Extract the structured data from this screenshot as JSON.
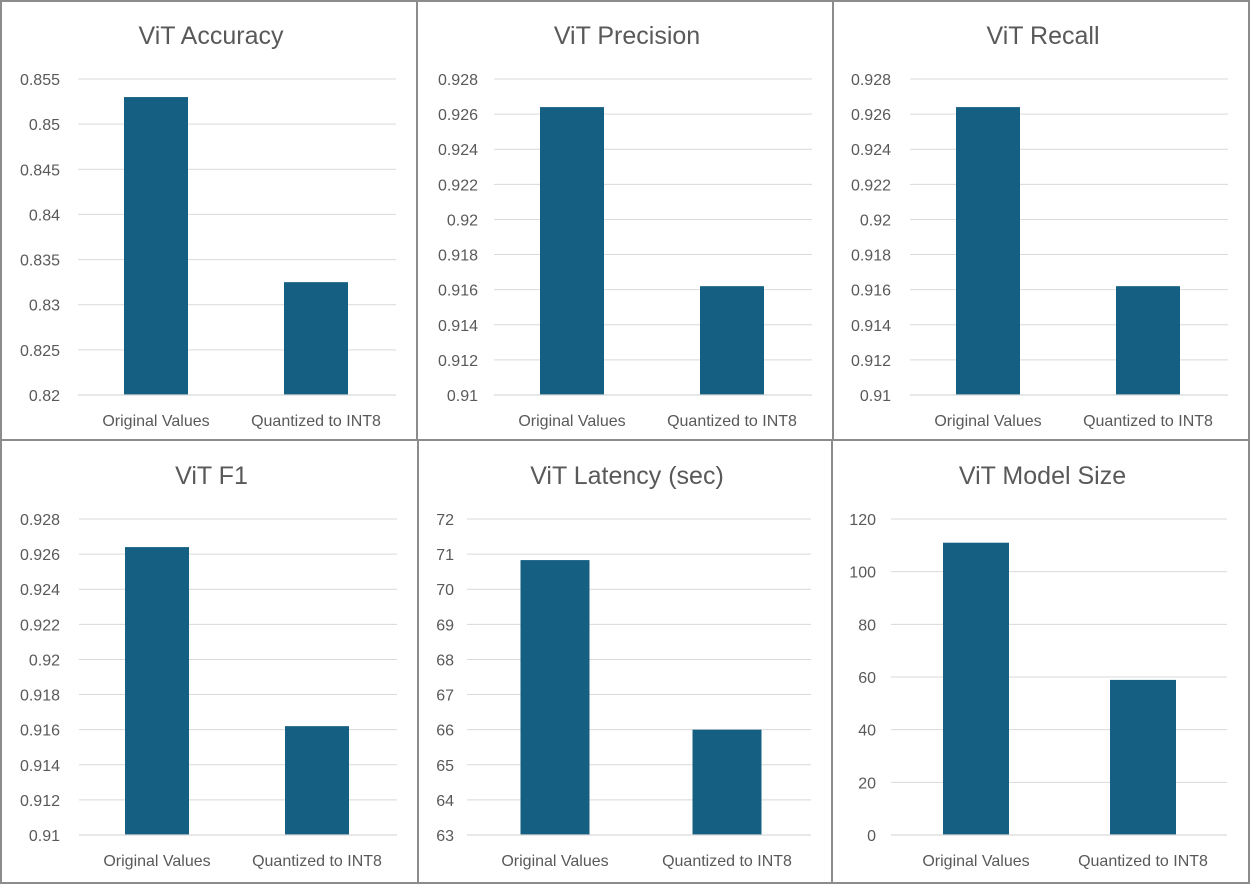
{
  "colors": {
    "bar": "#156082",
    "grid": "#d9d9d9",
    "text": "#595959",
    "border": "#8c8c8c"
  },
  "chart_data": [
    {
      "type": "bar",
      "title": "ViT Accuracy",
      "categories": [
        "Original Values",
        "Quantized to INT8"
      ],
      "values": [
        0.853,
        0.8325
      ],
      "ylim": [
        0.82,
        0.855
      ],
      "yticks": [
        "0.82",
        "0.825",
        "0.83",
        "0.835",
        "0.84",
        "0.845",
        "0.85",
        "0.855"
      ],
      "grid": true
    },
    {
      "type": "bar",
      "title": "ViT Precision",
      "categories": [
        "Original Values",
        "Quantized to INT8"
      ],
      "values": [
        0.9264,
        0.9162
      ],
      "ylim": [
        0.91,
        0.928
      ],
      "yticks": [
        "0.91",
        "0.912",
        "0.914",
        "0.916",
        "0.918",
        "0.92",
        "0.922",
        "0.924",
        "0.926",
        "0.928"
      ],
      "grid": true
    },
    {
      "type": "bar",
      "title": "ViT Recall",
      "categories": [
        "Original Values",
        "Quantized to INT8"
      ],
      "values": [
        0.9264,
        0.9162
      ],
      "ylim": [
        0.91,
        0.928
      ],
      "yticks": [
        "0.91",
        "0.912",
        "0.914",
        "0.916",
        "0.918",
        "0.92",
        "0.922",
        "0.924",
        "0.926",
        "0.928"
      ],
      "grid": true
    },
    {
      "type": "bar",
      "title": "ViT F1",
      "categories": [
        "Original Values",
        "Quantized to INT8"
      ],
      "values": [
        0.9264,
        0.9162
      ],
      "ylim": [
        0.91,
        0.928
      ],
      "yticks": [
        "0.91",
        "0.912",
        "0.914",
        "0.916",
        "0.918",
        "0.92",
        "0.922",
        "0.924",
        "0.926",
        "0.928"
      ],
      "grid": true
    },
    {
      "type": "bar",
      "title": "ViT Latency (sec)",
      "categories": [
        "Original Values",
        "Quantized to INT8"
      ],
      "values": [
        70.83,
        66.0
      ],
      "ylim": [
        63,
        72
      ],
      "yticks": [
        "63",
        "64",
        "65",
        "66",
        "67",
        "68",
        "69",
        "70",
        "71",
        "72"
      ],
      "grid": true
    },
    {
      "type": "bar",
      "title": "ViT Model Size",
      "categories": [
        "Original Values",
        "Quantized to INT8"
      ],
      "values": [
        111,
        58.9
      ],
      "ylim": [
        0,
        120
      ],
      "yticks": [
        "0",
        "20",
        "40",
        "60",
        "80",
        "100",
        "120"
      ],
      "grid": true
    }
  ]
}
